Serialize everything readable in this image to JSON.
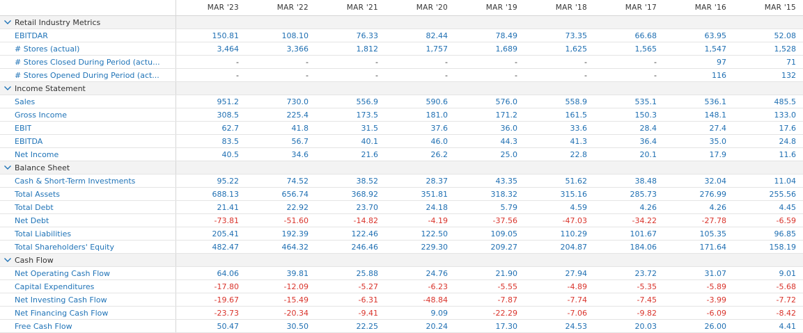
{
  "years": [
    "MAR '23",
    "MAR '22",
    "MAR '21",
    "MAR '20",
    "MAR '19",
    "MAR '18",
    "MAR '17",
    "MAR '16",
    "MAR '15"
  ],
  "icons": {
    "collapse": "chevron-down-icon"
  },
  "colors": {
    "link": "#1f73b7",
    "value": "#1f6fb2",
    "negative": "#d9332b",
    "section_bg": "#f3f3f3"
  },
  "sections": [
    {
      "title": "Retail Industry Metrics",
      "rows": [
        {
          "label": "EBITDAR",
          "values": [
            "150.81",
            "108.10",
            "76.33",
            "82.44",
            "78.49",
            "73.35",
            "66.68",
            "63.95",
            "52.08"
          ]
        },
        {
          "label": "# Stores (actual)",
          "values": [
            "3,464",
            "3,366",
            "1,812",
            "1,757",
            "1,689",
            "1,625",
            "1,565",
            "1,547",
            "1,528"
          ]
        },
        {
          "label": "# Stores Closed During Period (actu...",
          "values": [
            "-",
            "-",
            "-",
            "-",
            "-",
            "-",
            "-",
            "97",
            "71"
          ]
        },
        {
          "label": "# Stores Opened During Period (act...",
          "values": [
            "-",
            "-",
            "-",
            "-",
            "-",
            "-",
            "-",
            "116",
            "132"
          ]
        }
      ]
    },
    {
      "title": "Income Statement",
      "rows": [
        {
          "label": "Sales",
          "values": [
            "951.2",
            "730.0",
            "556.9",
            "590.6",
            "576.0",
            "558.9",
            "535.1",
            "536.1",
            "485.5"
          ]
        },
        {
          "label": "Gross Income",
          "values": [
            "308.5",
            "225.4",
            "173.5",
            "181.0",
            "171.2",
            "161.5",
            "150.3",
            "148.1",
            "133.0"
          ]
        },
        {
          "label": "EBIT",
          "values": [
            "62.7",
            "41.8",
            "31.5",
            "37.6",
            "36.0",
            "33.6",
            "28.4",
            "27.4",
            "17.6"
          ]
        },
        {
          "label": "EBITDA",
          "values": [
            "83.5",
            "56.7",
            "40.1",
            "46.0",
            "44.3",
            "41.3",
            "36.4",
            "35.0",
            "24.8"
          ]
        },
        {
          "label": "Net Income",
          "values": [
            "40.5",
            "34.6",
            "21.6",
            "26.2",
            "25.0",
            "22.8",
            "20.1",
            "17.9",
            "11.6"
          ]
        }
      ]
    },
    {
      "title": "Balance Sheet",
      "rows": [
        {
          "label": "Cash & Short-Term Investments",
          "values": [
            "95.22",
            "74.52",
            "38.52",
            "28.37",
            "43.35",
            "51.62",
            "38.48",
            "32.04",
            "11.04"
          ]
        },
        {
          "label": "Total Assets",
          "values": [
            "688.13",
            "656.74",
            "368.92",
            "351.81",
            "318.32",
            "315.16",
            "285.73",
            "276.99",
            "255.56"
          ]
        },
        {
          "label": "Total Debt",
          "values": [
            "21.41",
            "22.92",
            "23.70",
            "24.18",
            "5.79",
            "4.59",
            "4.26",
            "4.26",
            "4.45"
          ]
        },
        {
          "label": "Net Debt",
          "values": [
            "-73.81",
            "-51.60",
            "-14.82",
            "-4.19",
            "-37.56",
            "-47.03",
            "-34.22",
            "-27.78",
            "-6.59"
          ]
        },
        {
          "label": "Total Liabilities",
          "values": [
            "205.41",
            "192.39",
            "122.46",
            "122.50",
            "109.05",
            "110.29",
            "101.67",
            "105.35",
            "96.85"
          ]
        },
        {
          "label": "Total Shareholders' Equity",
          "values": [
            "482.47",
            "464.32",
            "246.46",
            "229.30",
            "209.27",
            "204.87",
            "184.06",
            "171.64",
            "158.19"
          ]
        }
      ]
    },
    {
      "title": "Cash Flow",
      "rows": [
        {
          "label": "Net Operating Cash Flow",
          "values": [
            "64.06",
            "39.81",
            "25.88",
            "24.76",
            "21.90",
            "27.94",
            "23.72",
            "31.07",
            "9.01"
          ]
        },
        {
          "label": "Capital Expenditures",
          "values": [
            "-17.80",
            "-12.09",
            "-5.27",
            "-6.23",
            "-5.55",
            "-4.89",
            "-5.35",
            "-5.89",
            "-5.68"
          ]
        },
        {
          "label": "Net Investing Cash Flow",
          "values": [
            "-19.67",
            "-15.49",
            "-6.31",
            "-48.84",
            "-7.87",
            "-7.74",
            "-7.45",
            "-3.99",
            "-7.72"
          ]
        },
        {
          "label": "Net Financing Cash Flow",
          "values": [
            "-23.73",
            "-20.34",
            "-9.41",
            "9.09",
            "-22.29",
            "-7.06",
            "-9.82",
            "-6.09",
            "-8.42"
          ]
        },
        {
          "label": "Free Cash Flow",
          "values": [
            "50.47",
            "30.50",
            "22.25",
            "20.24",
            "17.30",
            "24.53",
            "20.03",
            "26.00",
            "4.41"
          ]
        }
      ]
    }
  ]
}
